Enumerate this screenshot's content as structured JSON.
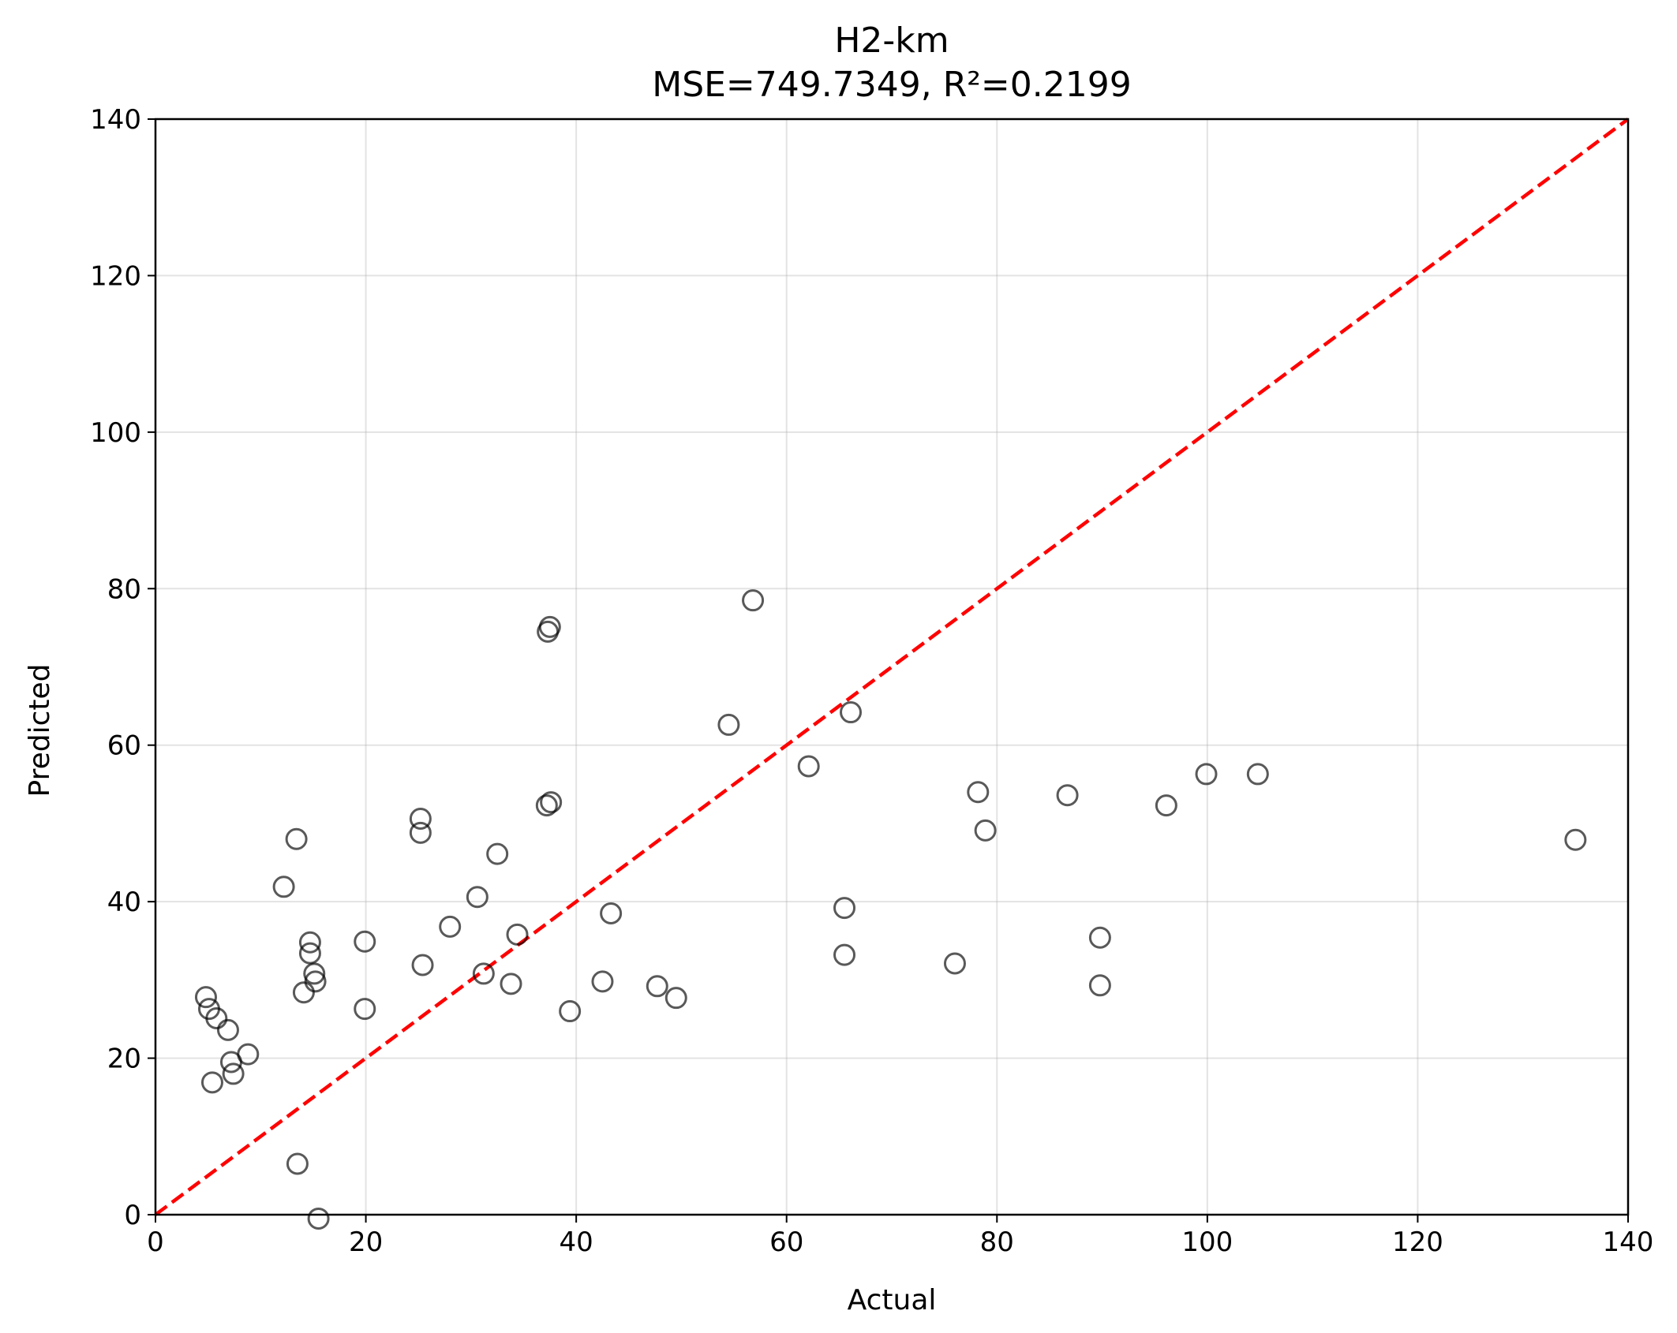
{
  "chart_data": {
    "type": "scatter",
    "title": "H2-km",
    "subtitle": "MSE=749.7349, R²=0.2199",
    "xlabel": "Actual",
    "ylabel": "Predicted",
    "xlim": [
      0,
      140
    ],
    "ylim": [
      0,
      140
    ],
    "xticks": [
      "0",
      "20",
      "40",
      "60",
      "80",
      "100",
      "120",
      "140"
    ],
    "yticks": [
      "0",
      "20",
      "40",
      "60",
      "80",
      "100",
      "120",
      "140"
    ],
    "grid": true,
    "reference_line": {
      "x": [
        0,
        140
      ],
      "y": [
        0,
        140
      ],
      "color": "#ff0000",
      "style": "dashed"
    },
    "marker": {
      "style": "hollow-circle",
      "color": "#000000",
      "alpha": 0.65
    },
    "points": [
      {
        "x": 4.8,
        "y": 27.8
      },
      {
        "x": 5.1,
        "y": 26.3
      },
      {
        "x": 5.8,
        "y": 25.1
      },
      {
        "x": 5.4,
        "y": 16.9
      },
      {
        "x": 6.9,
        "y": 23.6
      },
      {
        "x": 7.2,
        "y": 19.5
      },
      {
        "x": 7.4,
        "y": 18.0
      },
      {
        "x": 8.8,
        "y": 20.5
      },
      {
        "x": 12.2,
        "y": 41.9
      },
      {
        "x": 13.4,
        "y": 48.0
      },
      {
        "x": 13.5,
        "y": 6.5
      },
      {
        "x": 14.1,
        "y": 28.4
      },
      {
        "x": 14.7,
        "y": 34.8
      },
      {
        "x": 14.7,
        "y": 33.4
      },
      {
        "x": 15.1,
        "y": 30.8
      },
      {
        "x": 15.2,
        "y": 29.8
      },
      {
        "x": 15.5,
        "y": -0.5
      },
      {
        "x": 19.9,
        "y": 34.9
      },
      {
        "x": 19.9,
        "y": 26.3
      },
      {
        "x": 25.2,
        "y": 50.6
      },
      {
        "x": 25.2,
        "y": 48.8
      },
      {
        "x": 25.4,
        "y": 31.9
      },
      {
        "x": 28.0,
        "y": 36.8
      },
      {
        "x": 30.6,
        "y": 40.6
      },
      {
        "x": 31.2,
        "y": 30.8
      },
      {
        "x": 32.5,
        "y": 46.1
      },
      {
        "x": 33.8,
        "y": 29.5
      },
      {
        "x": 34.4,
        "y": 35.8
      },
      {
        "x": 37.3,
        "y": 74.5
      },
      {
        "x": 37.5,
        "y": 75.1
      },
      {
        "x": 37.2,
        "y": 52.3
      },
      {
        "x": 37.6,
        "y": 52.7
      },
      {
        "x": 39.4,
        "y": 26.0
      },
      {
        "x": 42.5,
        "y": 29.8
      },
      {
        "x": 43.3,
        "y": 38.5
      },
      {
        "x": 47.7,
        "y": 29.2
      },
      {
        "x": 49.5,
        "y": 27.7
      },
      {
        "x": 54.5,
        "y": 62.6
      },
      {
        "x": 56.8,
        "y": 78.5
      },
      {
        "x": 62.1,
        "y": 57.3
      },
      {
        "x": 65.5,
        "y": 39.2
      },
      {
        "x": 65.5,
        "y": 33.2
      },
      {
        "x": 66.1,
        "y": 64.2
      },
      {
        "x": 76.0,
        "y": 32.1
      },
      {
        "x": 78.2,
        "y": 54.0
      },
      {
        "x": 78.9,
        "y": 49.1
      },
      {
        "x": 86.7,
        "y": 53.6
      },
      {
        "x": 89.8,
        "y": 35.4
      },
      {
        "x": 89.8,
        "y": 29.3
      },
      {
        "x": 96.1,
        "y": 52.3
      },
      {
        "x": 99.9,
        "y": 56.3
      },
      {
        "x": 104.8,
        "y": 56.3
      },
      {
        "x": 135.0,
        "y": 47.9
      }
    ]
  }
}
